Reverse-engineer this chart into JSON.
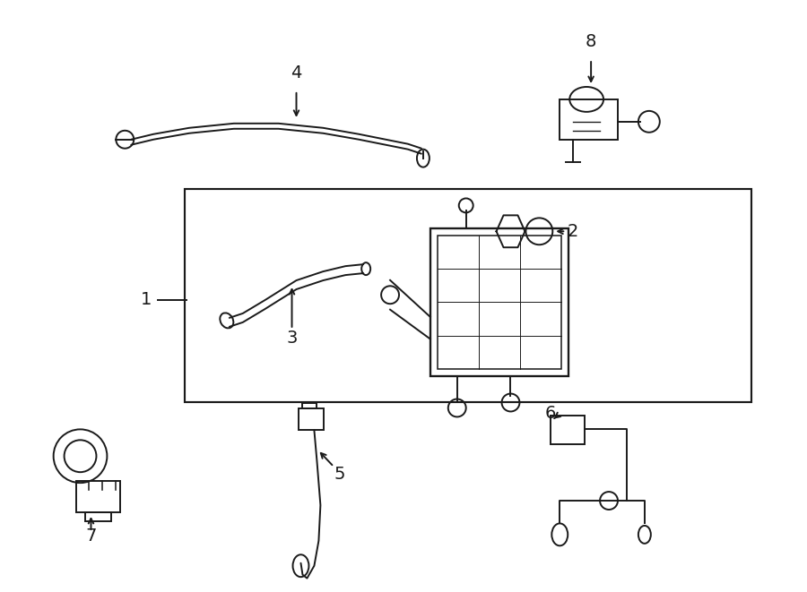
{
  "bg_color": "#ffffff",
  "line_color": "#1a1a1a",
  "lw": 1.4,
  "fig_width": 9.0,
  "fig_height": 6.61
}
